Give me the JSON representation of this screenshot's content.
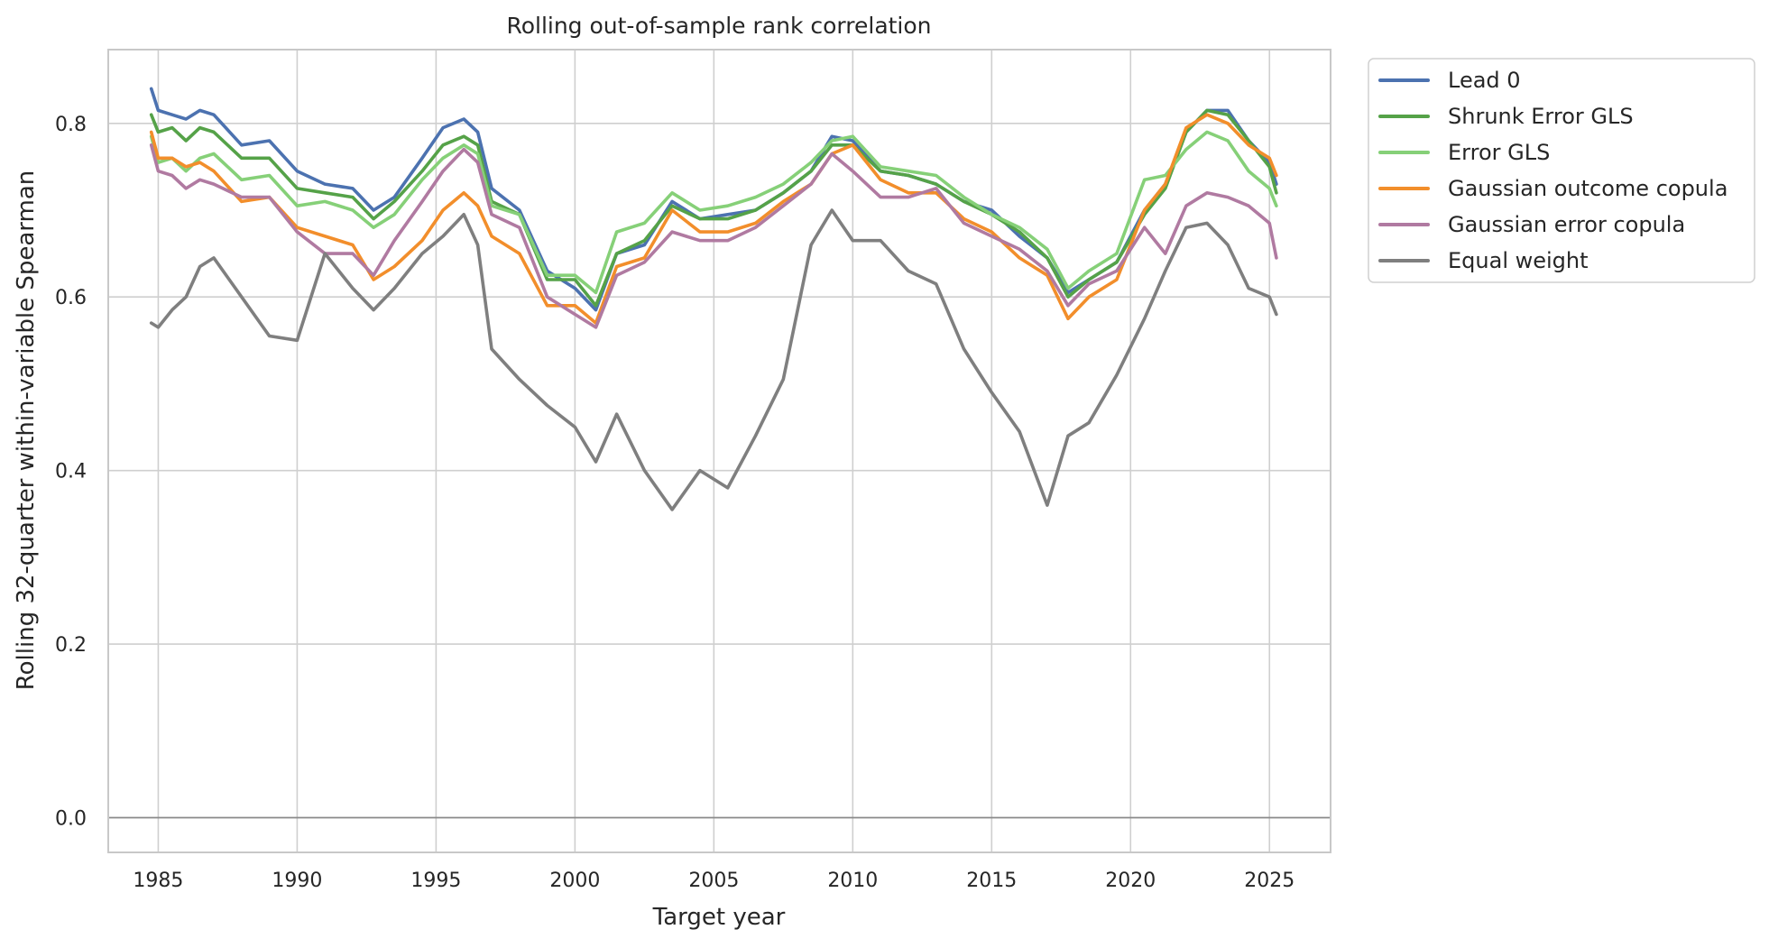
{
  "chart_data": {
    "type": "line",
    "title": "Rolling out-of-sample rank correlation",
    "xlabel": "Target year",
    "ylabel": "Rolling 32-quarter within-variable Spearman",
    "xlim": [
      1983.2,
      2027.2
    ],
    "ylim": [
      -0.04,
      0.885
    ],
    "xticks": [
      "1985",
      "1990",
      "1995",
      "2000",
      "2005",
      "2010",
      "2015",
      "2020",
      "2025"
    ],
    "yticks": [
      "0.0",
      "0.2",
      "0.4",
      "0.6",
      "0.8"
    ],
    "grid": true,
    "legend_position": "outside-top-right",
    "x_knots": [
      1984.75,
      1985,
      1985.5,
      1986,
      1986.5,
      1987,
      1988,
      1989,
      1990,
      1991,
      1992,
      1992.75,
      1993.5,
      1994.5,
      1995.25,
      1996,
      1996.5,
      1997,
      1998,
      1999,
      2000,
      2000.75,
      2001.5,
      2002.5,
      2003.5,
      2004.5,
      2005.5,
      2006.5,
      2007.5,
      2008.5,
      2009.25,
      2010,
      2011,
      2012,
      2013,
      2014,
      2015,
      2016,
      2017,
      2017.75,
      2018.5,
      2019.5,
      2020.5,
      2021.25,
      2022,
      2022.75,
      2023.5,
      2024.25,
      2025,
      2025.25
    ],
    "series": [
      {
        "name": "Lead 0",
        "color": "#4c72b0",
        "values": [
          0.84,
          0.815,
          0.81,
          0.805,
          0.815,
          0.81,
          0.775,
          0.78,
          0.745,
          0.73,
          0.725,
          0.7,
          0.715,
          0.76,
          0.795,
          0.805,
          0.79,
          0.725,
          0.7,
          0.63,
          0.61,
          0.585,
          0.65,
          0.66,
          0.71,
          0.69,
          0.695,
          0.7,
          0.72,
          0.745,
          0.785,
          0.78,
          0.745,
          0.74,
          0.73,
          0.71,
          0.7,
          0.67,
          0.645,
          0.605,
          0.62,
          0.64,
          0.7,
          0.73,
          0.79,
          0.815,
          0.815,
          0.78,
          0.755,
          0.73
        ]
      },
      {
        "name": "Shrunk Error GLS",
        "color": "#55a248",
        "values": [
          0.81,
          0.79,
          0.795,
          0.78,
          0.795,
          0.79,
          0.76,
          0.76,
          0.725,
          0.72,
          0.715,
          0.69,
          0.71,
          0.745,
          0.775,
          0.785,
          0.775,
          0.71,
          0.695,
          0.62,
          0.62,
          0.59,
          0.65,
          0.665,
          0.705,
          0.69,
          0.69,
          0.7,
          0.72,
          0.745,
          0.775,
          0.775,
          0.745,
          0.74,
          0.73,
          0.71,
          0.695,
          0.675,
          0.645,
          0.6,
          0.62,
          0.64,
          0.695,
          0.725,
          0.79,
          0.815,
          0.81,
          0.78,
          0.75,
          0.72
        ]
      },
      {
        "name": "Error GLS",
        "color": "#86d078",
        "values": [
          0.785,
          0.755,
          0.76,
          0.745,
          0.76,
          0.765,
          0.735,
          0.74,
          0.705,
          0.71,
          0.7,
          0.68,
          0.695,
          0.735,
          0.76,
          0.775,
          0.765,
          0.705,
          0.695,
          0.625,
          0.625,
          0.605,
          0.675,
          0.685,
          0.72,
          0.7,
          0.705,
          0.715,
          0.73,
          0.755,
          0.78,
          0.785,
          0.75,
          0.745,
          0.74,
          0.715,
          0.695,
          0.68,
          0.655,
          0.61,
          0.63,
          0.65,
          0.735,
          0.74,
          0.77,
          0.79,
          0.78,
          0.745,
          0.725,
          0.705
        ]
      },
      {
        "name": "Gaussian outcome copula",
        "color": "#f28e2b",
        "values": [
          0.79,
          0.76,
          0.76,
          0.75,
          0.755,
          0.745,
          0.71,
          0.715,
          0.68,
          0.67,
          0.66,
          0.62,
          0.635,
          0.665,
          0.7,
          0.72,
          0.705,
          0.67,
          0.65,
          0.59,
          0.59,
          0.57,
          0.635,
          0.645,
          0.7,
          0.675,
          0.675,
          0.685,
          0.71,
          0.73,
          0.765,
          0.775,
          0.735,
          0.72,
          0.72,
          0.69,
          0.675,
          0.645,
          0.625,
          0.575,
          0.6,
          0.62,
          0.7,
          0.73,
          0.795,
          0.81,
          0.8,
          0.775,
          0.76,
          0.74
        ]
      },
      {
        "name": "Gaussian error copula",
        "color": "#b07aa1",
        "values": [
          0.775,
          0.745,
          0.74,
          0.725,
          0.735,
          0.73,
          0.715,
          0.715,
          0.675,
          0.65,
          0.65,
          0.625,
          0.665,
          0.71,
          0.745,
          0.77,
          0.755,
          0.695,
          0.68,
          0.6,
          0.58,
          0.565,
          0.625,
          0.64,
          0.675,
          0.665,
          0.665,
          0.68,
          0.705,
          0.73,
          0.765,
          0.745,
          0.715,
          0.715,
          0.725,
          0.685,
          0.67,
          0.655,
          0.63,
          0.59,
          0.615,
          0.63,
          0.68,
          0.65,
          0.705,
          0.72,
          0.715,
          0.705,
          0.685,
          0.645
        ]
      },
      {
        "name": "Equal weight",
        "color": "#7f7f7f",
        "values": [
          0.57,
          0.565,
          0.585,
          0.6,
          0.635,
          0.645,
          0.6,
          0.555,
          0.55,
          0.65,
          0.61,
          0.585,
          0.61,
          0.65,
          0.67,
          0.695,
          0.66,
          0.54,
          0.505,
          0.475,
          0.45,
          0.41,
          0.465,
          0.4,
          0.355,
          0.4,
          0.38,
          0.44,
          0.505,
          0.66,
          0.7,
          0.665,
          0.665,
          0.63,
          0.615,
          0.54,
          0.49,
          0.445,
          0.36,
          0.44,
          0.455,
          0.51,
          0.575,
          0.63,
          0.68,
          0.685,
          0.66,
          0.61,
          0.6,
          0.58
        ]
      }
    ]
  }
}
